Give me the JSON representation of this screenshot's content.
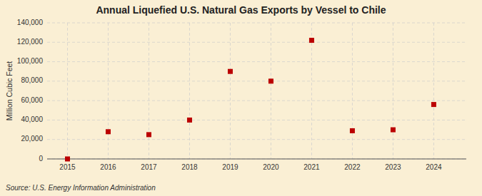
{
  "chart_data": {
    "type": "scatter",
    "title": "Annual Liquefied U.S. Natural Gas Exports by Vessel to Chile",
    "ylabel": "Million Cubic Feet",
    "annotations": [
      "Source: U.S. Energy Information Administration"
    ],
    "x": [
      2015,
      2016,
      2017,
      2018,
      2019,
      2020,
      2021,
      2022,
      2023,
      2024
    ],
    "values": [
      0,
      28000,
      25000,
      40000,
      90000,
      80000,
      122000,
      29000,
      30000,
      56000
    ],
    "color": "#bb0000",
    "marker": "square",
    "xlim": [
      2014.5,
      2024.8
    ],
    "xticks": [
      2015,
      2016,
      2017,
      2018,
      2019,
      2020,
      2021,
      2022,
      2023,
      2024
    ],
    "ylim": [
      0,
      140000
    ],
    "yticks": [
      0,
      {
        "value": 20000,
        "label": "20,000"
      },
      {
        "value": 40000,
        "label": "40,000"
      },
      {
        "value": 60000,
        "label": "60,000"
      },
      {
        "value": 80000,
        "label": "80,000"
      },
      {
        "value": 100000,
        "label": "100,000"
      },
      {
        "value": 120000,
        "label": "120,000"
      },
      {
        "value": 140000,
        "label": "140,000"
      }
    ],
    "grid": true
  }
}
